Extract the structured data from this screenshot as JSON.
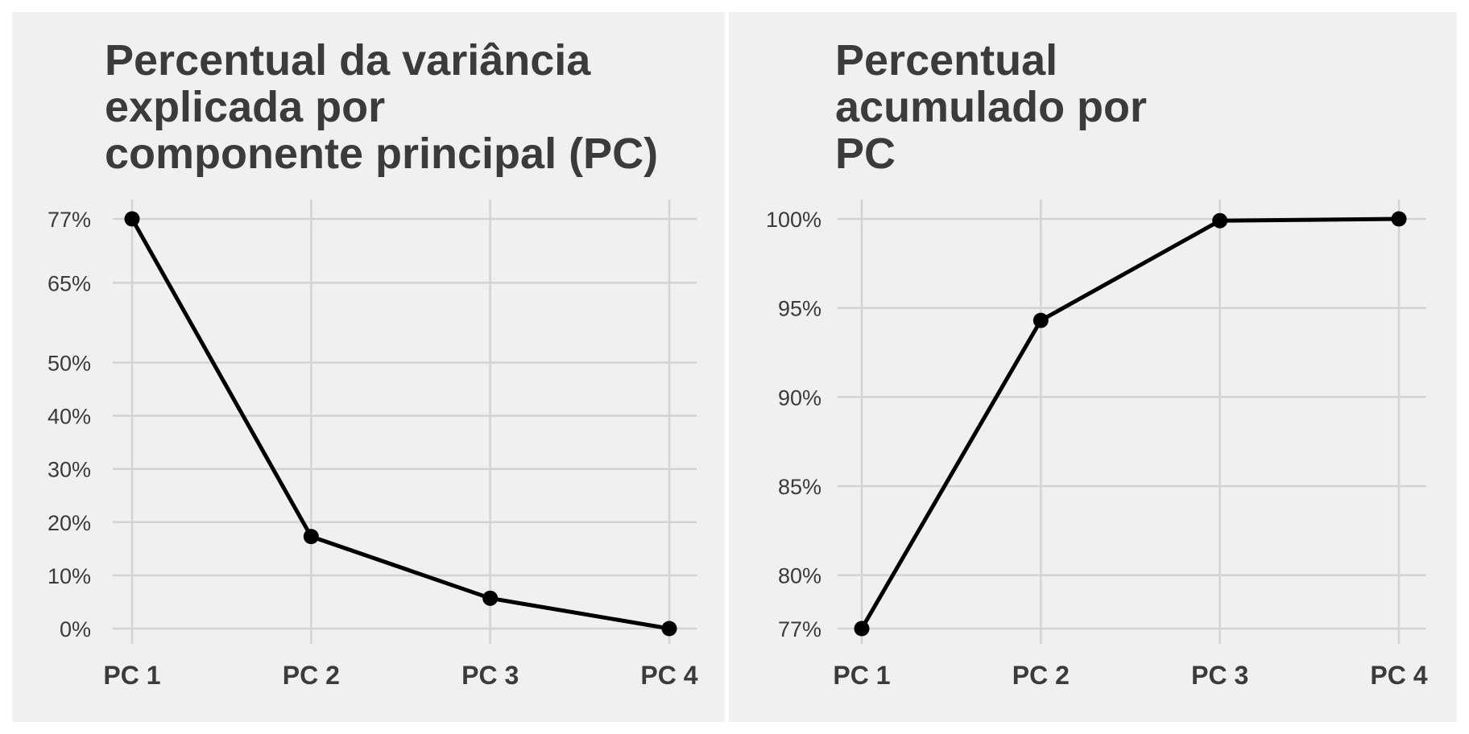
{
  "chart_data": [
    {
      "type": "line",
      "title": "Percentual da variância explicada por componente principal (PC)",
      "title_lines": [
        "Percentual da variância",
        "explicada por",
        "componente principal (PC)"
      ],
      "categories": [
        "PC 1",
        "PC 2",
        "PC 3",
        "PC 4"
      ],
      "values": [
        0.77,
        0.173,
        0.057,
        0.0
      ],
      "y_ticks": [
        0.0,
        0.1,
        0.2,
        0.3,
        0.4,
        0.5,
        0.65,
        0.77
      ],
      "y_tick_labels": [
        "0%",
        "10%",
        "20%",
        "30%",
        "40%",
        "50%",
        "65%",
        "77%"
      ],
      "ylim": [
        0.0,
        0.77
      ],
      "grid": true,
      "line_color": "#000000",
      "background_color": "#f0f0f0"
    },
    {
      "type": "line",
      "title": "Percentual acumulado por PC",
      "title_lines": [
        "Percentual",
        "acumulado por",
        "PC"
      ],
      "categories": [
        "PC 1",
        "PC 2",
        "PC 3",
        "PC 4"
      ],
      "values": [
        0.77,
        0.943,
        0.999,
        1.0
      ],
      "y_ticks": [
        0.77,
        0.8,
        0.85,
        0.9,
        0.95,
        1.0
      ],
      "y_tick_labels": [
        "77%",
        "80%",
        "85%",
        "90%",
        "95%",
        "100%"
      ],
      "ylim": [
        0.77,
        1.0
      ],
      "grid": true,
      "line_color": "#000000",
      "background_color": "#f0f0f0"
    }
  ]
}
